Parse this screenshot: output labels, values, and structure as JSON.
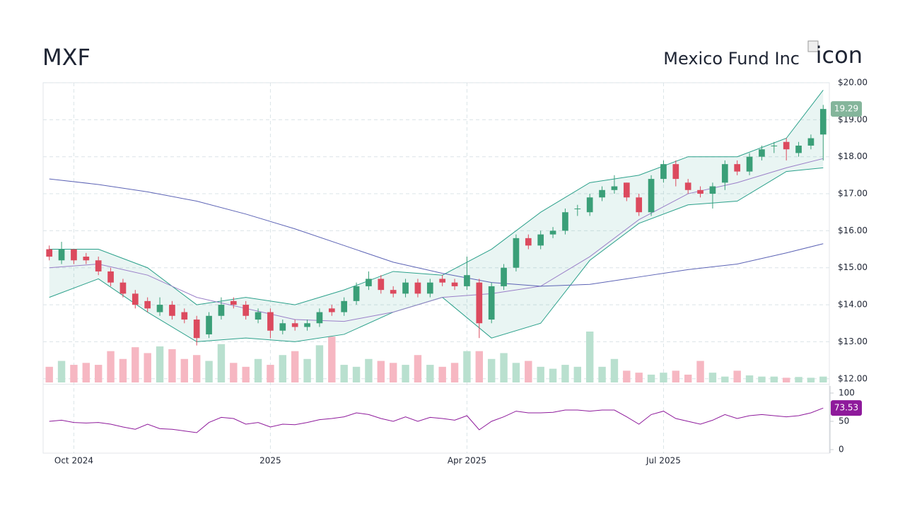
{
  "header": {
    "ticker": "MXF",
    "name": "Mexico Fund Inc",
    "icon_alt": "icon"
  },
  "chart_data": {
    "type": "candlestick",
    "categories": [
      null,
      null,
      "Oct 2024",
      null,
      null,
      null,
      null,
      null,
      null,
      null,
      null,
      null,
      null,
      null,
      null,
      null,
      null,
      null,
      "2025",
      null,
      null,
      null,
      null,
      null,
      null,
      null,
      null,
      null,
      null,
      null,
      null,
      null,
      null,
      null,
      "Apr 2025",
      null,
      null,
      null,
      null,
      null,
      null,
      null,
      null,
      null,
      null,
      null,
      null,
      null,
      null,
      null,
      "Jul 2025",
      null,
      null,
      null,
      null,
      null,
      null,
      null,
      null,
      null,
      null,
      null,
      null,
      null
    ],
    "open": [
      15.5,
      15.2,
      15.5,
      15.3,
      15.2,
      14.9,
      14.6,
      14.3,
      14.1,
      13.8,
      14.0,
      13.8,
      13.6,
      13.2,
      13.7,
      14.1,
      14.0,
      13.6,
      13.8,
      13.3,
      13.5,
      13.4,
      13.5,
      13.9,
      13.8,
      14.1,
      14.5,
      14.7,
      14.4,
      14.3,
      14.6,
      14.3,
      14.7,
      14.6,
      14.5,
      14.6,
      13.6,
      14.5,
      15.0,
      15.8,
      15.6,
      15.9,
      16.0,
      16.6,
      16.5,
      16.9,
      17.1,
      17.3,
      16.9,
      16.5,
      17.4,
      17.8,
      17.3,
      17.1,
      17.0,
      17.3,
      17.8,
      17.6,
      18.0,
      18.3,
      18.4,
      18.1,
      18.3,
      18.6
    ],
    "high": [
      15.6,
      15.7,
      15.5,
      15.4,
      15.3,
      15.0,
      14.7,
      14.4,
      14.2,
      14.2,
      14.1,
      13.9,
      13.7,
      13.8,
      14.2,
      14.2,
      14.1,
      13.9,
      13.9,
      13.6,
      13.6,
      13.6,
      13.9,
      14.0,
      14.2,
      14.6,
      14.9,
      14.8,
      14.5,
      14.7,
      14.7,
      14.7,
      14.8,
      14.7,
      15.3,
      14.7,
      14.6,
      15.1,
      15.9,
      15.9,
      16.0,
      16.1,
      16.6,
      16.7,
      17.0,
      17.2,
      17.5,
      17.3,
      17.0,
      17.5,
      17.9,
      17.9,
      17.4,
      17.2,
      17.3,
      17.9,
      17.9,
      18.1,
      18.3,
      18.4,
      18.5,
      18.4,
      18.6,
      19.4
    ],
    "low": [
      15.2,
      15.1,
      15.1,
      15.1,
      14.8,
      14.5,
      14.2,
      13.9,
      13.8,
      13.7,
      13.6,
      13.5,
      12.9,
      13.1,
      13.6,
      13.9,
      13.6,
      13.5,
      13.1,
      13.2,
      13.3,
      13.3,
      13.4,
      13.7,
      13.7,
      14.0,
      14.4,
      14.3,
      14.2,
      14.2,
      14.2,
      14.2,
      14.5,
      14.4,
      14.4,
      13.1,
      13.5,
      14.4,
      14.9,
      15.5,
      15.5,
      15.8,
      15.9,
      16.4,
      16.4,
      16.8,
      17.0,
      16.8,
      16.4,
      16.4,
      17.3,
      17.2,
      17.0,
      16.9,
      16.6,
      17.1,
      17.5,
      17.5,
      17.9,
      18.1,
      17.9,
      18.0,
      18.2,
      17.9
    ],
    "close": [
      15.3,
      15.5,
      15.2,
      15.2,
      14.9,
      14.6,
      14.3,
      14.0,
      13.9,
      14.0,
      13.7,
      13.6,
      13.1,
      13.7,
      14.0,
      14.0,
      13.7,
      13.8,
      13.3,
      13.5,
      13.4,
      13.5,
      13.8,
      13.8,
      14.1,
      14.5,
      14.7,
      14.4,
      14.3,
      14.6,
      14.3,
      14.6,
      14.6,
      14.5,
      14.8,
      13.5,
      14.5,
      15.0,
      15.8,
      15.6,
      15.9,
      16.0,
      16.5,
      16.6,
      16.9,
      17.1,
      17.2,
      16.9,
      16.5,
      17.4,
      17.8,
      17.4,
      17.1,
      17.0,
      17.2,
      17.8,
      17.6,
      18.0,
      18.2,
      18.3,
      18.2,
      18.3,
      18.5,
      19.29
    ],
    "up_color": "#3a9f78",
    "down_color": "#dc4a5e",
    "last_color": "#84b59b",
    "ylim": [
      11.9,
      20
    ],
    "yticks": [
      {
        "value": 12,
        "label": "$12.00"
      },
      {
        "value": 13,
        "label": "$13.00"
      },
      {
        "value": 14,
        "label": "$14.00"
      },
      {
        "value": 15,
        "label": "$15.00"
      },
      {
        "value": 16,
        "label": "$16.00"
      },
      {
        "value": 17,
        "label": "$17.00"
      },
      {
        "value": 18,
        "label": "$18.00"
      },
      {
        "value": 19,
        "label": "$19.00"
      },
      {
        "value": 20,
        "label": "$20.00"
      }
    ],
    "grid": true,
    "overlays": {
      "x": [
        0,
        4,
        8,
        12,
        16,
        20,
        24,
        28,
        32,
        36,
        40,
        44,
        48,
        52,
        56,
        60,
        63
      ],
      "band_fill": "rgba(42,160,140,0.10)",
      "series": [
        {
          "color": "#2aa08a",
          "values": [
            15.5,
            15.5,
            15.0,
            14.0,
            14.2,
            14.0,
            14.4,
            14.9,
            14.8,
            15.5,
            16.5,
            17.3,
            17.5,
            18.0,
            18.0,
            18.5,
            19.8
          ]
        },
        {
          "color": "#2aa08a",
          "values": [
            14.2,
            14.7,
            13.8,
            13.0,
            13.1,
            13.0,
            13.2,
            13.8,
            14.2,
            13.1,
            13.5,
            15.2,
            16.2,
            16.7,
            16.8,
            17.6,
            17.7
          ]
        },
        {
          "color": "#9a7fc8",
          "values": [
            15.0,
            15.1,
            14.8,
            14.2,
            13.9,
            13.6,
            13.55,
            13.8,
            14.2,
            14.3,
            14.5,
            15.3,
            16.3,
            17.0,
            17.3,
            17.7,
            17.95
          ]
        },
        {
          "color": "#5c63b5",
          "values": [
            17.4,
            17.25,
            17.05,
            16.8,
            16.45,
            16.05,
            15.6,
            15.15,
            14.85,
            14.6,
            14.5,
            14.55,
            14.75,
            14.95,
            15.1,
            15.4,
            15.65
          ]
        }
      ]
    },
    "volume": {
      "up_color": "#b9e0cf",
      "down_color": "#f6b7c2",
      "values": [
        40,
        55,
        45,
        50,
        45,
        80,
        60,
        90,
        75,
        92,
        85,
        60,
        70,
        55,
        98,
        50,
        40,
        60,
        45,
        70,
        80,
        60,
        95,
        117,
        45,
        40,
        60,
        55,
        50,
        45,
        70,
        45,
        40,
        50,
        80,
        80,
        60,
        75,
        50,
        55,
        40,
        35,
        45,
        40,
        130,
        40,
        60,
        30,
        25,
        20,
        25,
        30,
        20,
        55,
        25,
        15,
        30,
        18,
        15,
        15,
        12,
        14,
        12,
        15
      ]
    },
    "rsi": {
      "color": "#8e1a9b",
      "ylim": [
        0,
        100
      ],
      "yticks": [
        0,
        50,
        100
      ],
      "values": [
        50,
        52,
        48,
        47,
        48,
        45,
        40,
        36,
        45,
        37,
        36,
        33,
        30,
        48,
        57,
        55,
        45,
        48,
        40,
        45,
        44,
        48,
        53,
        55,
        58,
        65,
        62,
        55,
        50,
        58,
        50,
        57,
        55,
        52,
        60,
        35,
        50,
        58,
        68,
        65,
        65,
        66,
        70,
        70,
        68,
        70,
        70,
        58,
        45,
        62,
        68,
        55,
        50,
        45,
        52,
        62,
        55,
        60,
        62,
        60,
        58,
        60,
        65,
        73.53
      ]
    }
  }
}
